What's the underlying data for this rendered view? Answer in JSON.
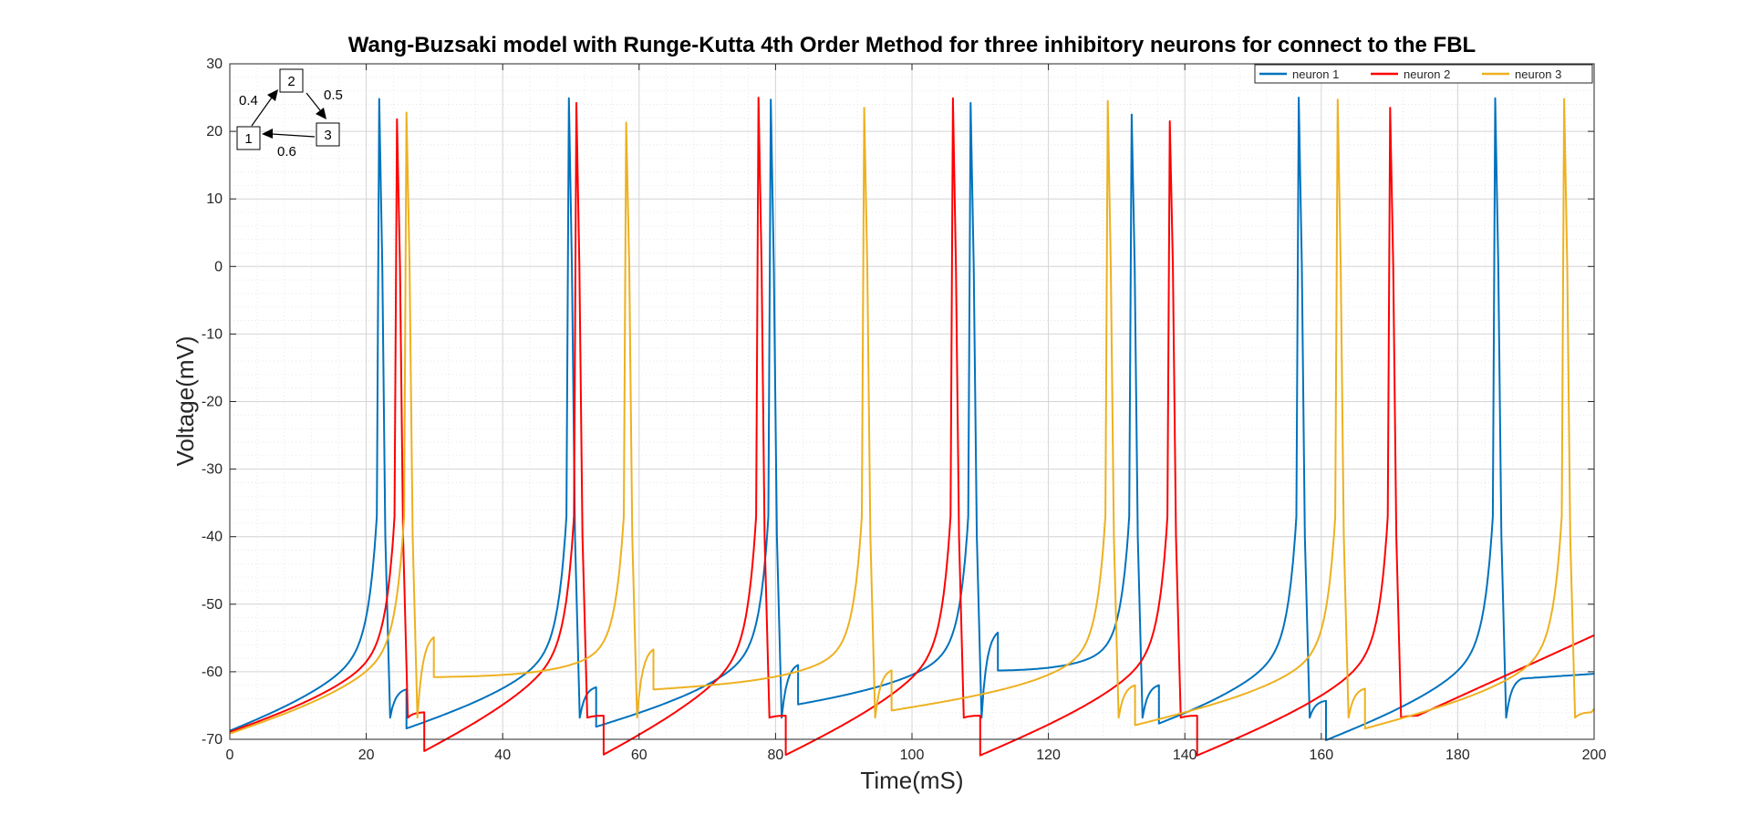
{
  "chart_data": {
    "type": "line",
    "title": "Wang-Buzsaki model with Runge-Kutta 4th Order Method for three inhibitory neurons for connect to the FBL",
    "xlabel": "Time(mS)",
    "ylabel": "Voltage(mV)",
    "xlim": [
      0,
      200
    ],
    "ylim": [
      -70,
      30
    ],
    "xticks": [
      "0",
      "20",
      "40",
      "60",
      "80",
      "100",
      "120",
      "140",
      "160",
      "180",
      "200"
    ],
    "yticks": [
      "-70",
      "-60",
      "-50",
      "-40",
      "-30",
      "-20",
      "-10",
      "0",
      "10",
      "20",
      "30"
    ],
    "grid": true,
    "minor_grid": true,
    "legend_position": "top-right",
    "series": [
      {
        "name": "neuron 1",
        "color": "#0072BD",
        "start": -63,
        "spikes": [
          {
            "t": 21.9,
            "peak": 24.8,
            "after": -62.6
          },
          {
            "t": 49.7,
            "peak": 24.9,
            "after": -62.3
          },
          {
            "t": 79.3,
            "peak": 24.7,
            "after": -59.0
          },
          {
            "t": 108.6,
            "peak": 24.2,
            "after": -54.2
          },
          {
            "t": 132.2,
            "peak": 22.5,
            "after": -62.0
          },
          {
            "t": 156.7,
            "peak": 25.0,
            "after": -64.3
          },
          {
            "t": 185.5,
            "peak": 24.9,
            "after": -61.0
          }
        ],
        "end": -60.3
      },
      {
        "name": "neuron 2",
        "color": "#FF0000",
        "start": -63.1,
        "spikes": [
          {
            "t": 24.5,
            "peak": 21.8,
            "after": -66.0
          },
          {
            "t": 50.8,
            "peak": 24.2,
            "after": -66.5
          },
          {
            "t": 77.5,
            "peak": 25.0,
            "after": -66.5
          },
          {
            "t": 106.0,
            "peak": 24.9,
            "after": -66.5
          },
          {
            "t": 137.8,
            "peak": 21.5,
            "after": -66.5
          },
          {
            "t": 170.1,
            "peak": 23.5,
            "after": -66.5
          }
        ],
        "end": -54.6
      },
      {
        "name": "neuron 3",
        "color": "#EDB120",
        "start": -63.3,
        "spikes": [
          {
            "t": 25.9,
            "peak": 22.8,
            "after": -54.9
          },
          {
            "t": 58.1,
            "peak": 21.3,
            "after": -56.7
          },
          {
            "t": 93.0,
            "peak": 23.5,
            "after": -59.8
          },
          {
            "t": 128.7,
            "peak": 24.5,
            "after": -62.0
          },
          {
            "t": 162.4,
            "peak": 24.7,
            "after": -62.5
          },
          {
            "t": 195.6,
            "peak": 24.8,
            "after": -66.0
          }
        ],
        "end": -65.5
      }
    ]
  },
  "annotation": {
    "nodes": [
      "1",
      "2",
      "3"
    ],
    "edge_labels": [
      "0.4",
      "0.5",
      "0.6"
    ]
  }
}
